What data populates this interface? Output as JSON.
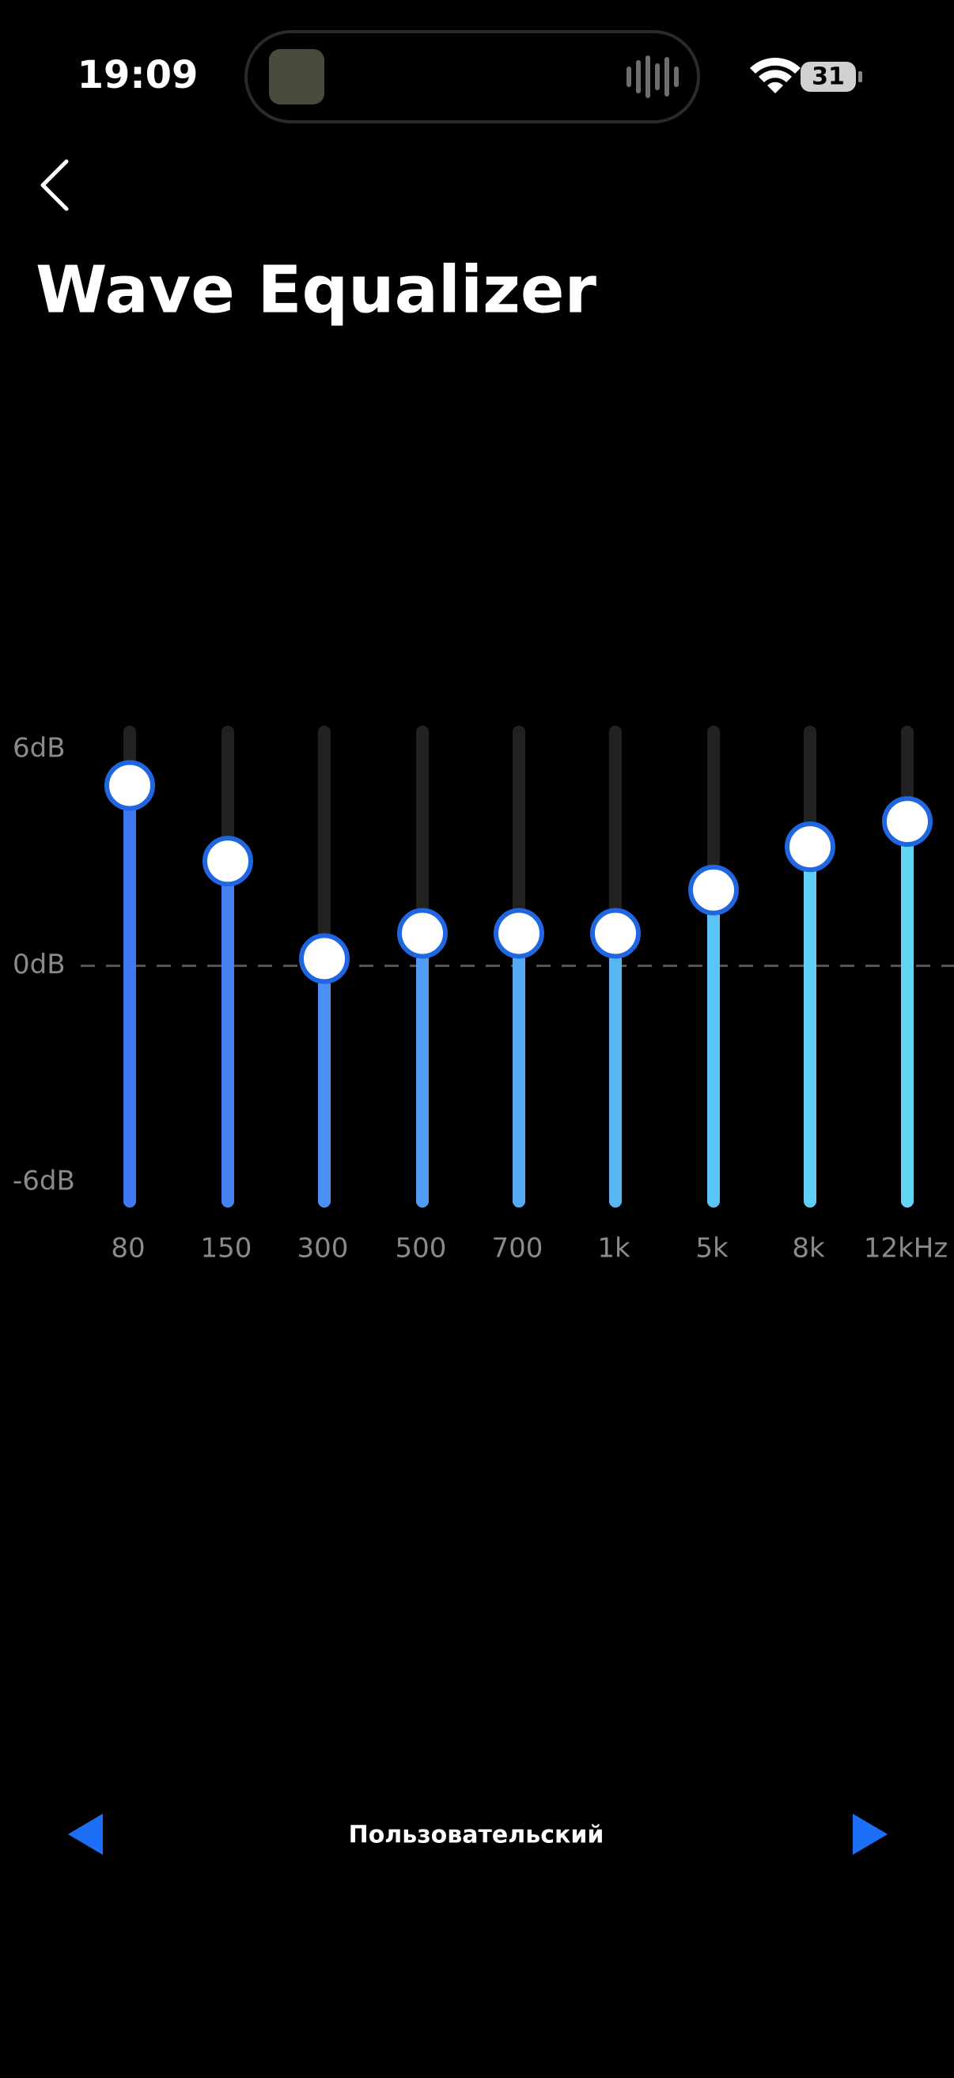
{
  "status_bar": {
    "time": "19:09",
    "battery": "31"
  },
  "header": {
    "title": "Wave Equalizer"
  },
  "equalizer": {
    "type": "slider-bars",
    "categories": [
      "80",
      "150",
      "300",
      "500",
      "700",
      "1k",
      "5k",
      "8k",
      "12kHz"
    ],
    "values": [
      5.0,
      2.9,
      0.2,
      0.9,
      0.9,
      0.9,
      2.1,
      3.3,
      4.0
    ],
    "colors": [
      "#3f78f0",
      "#4482f1",
      "#4a8ff2",
      "#4f9cf3",
      "#54a9f4",
      "#58b6f5",
      "#5cc3f6",
      "#5fcdf5",
      "#63d6f4"
    ],
    "ylim": [
      -6,
      6
    ],
    "yticks": [
      {
        "value": 6,
        "label": "6dB"
      },
      {
        "value": 0,
        "label": "0dB"
      },
      {
        "value": -6,
        "label": "-6dB"
      }
    ]
  },
  "preset": {
    "name": "Пользовательский"
  }
}
